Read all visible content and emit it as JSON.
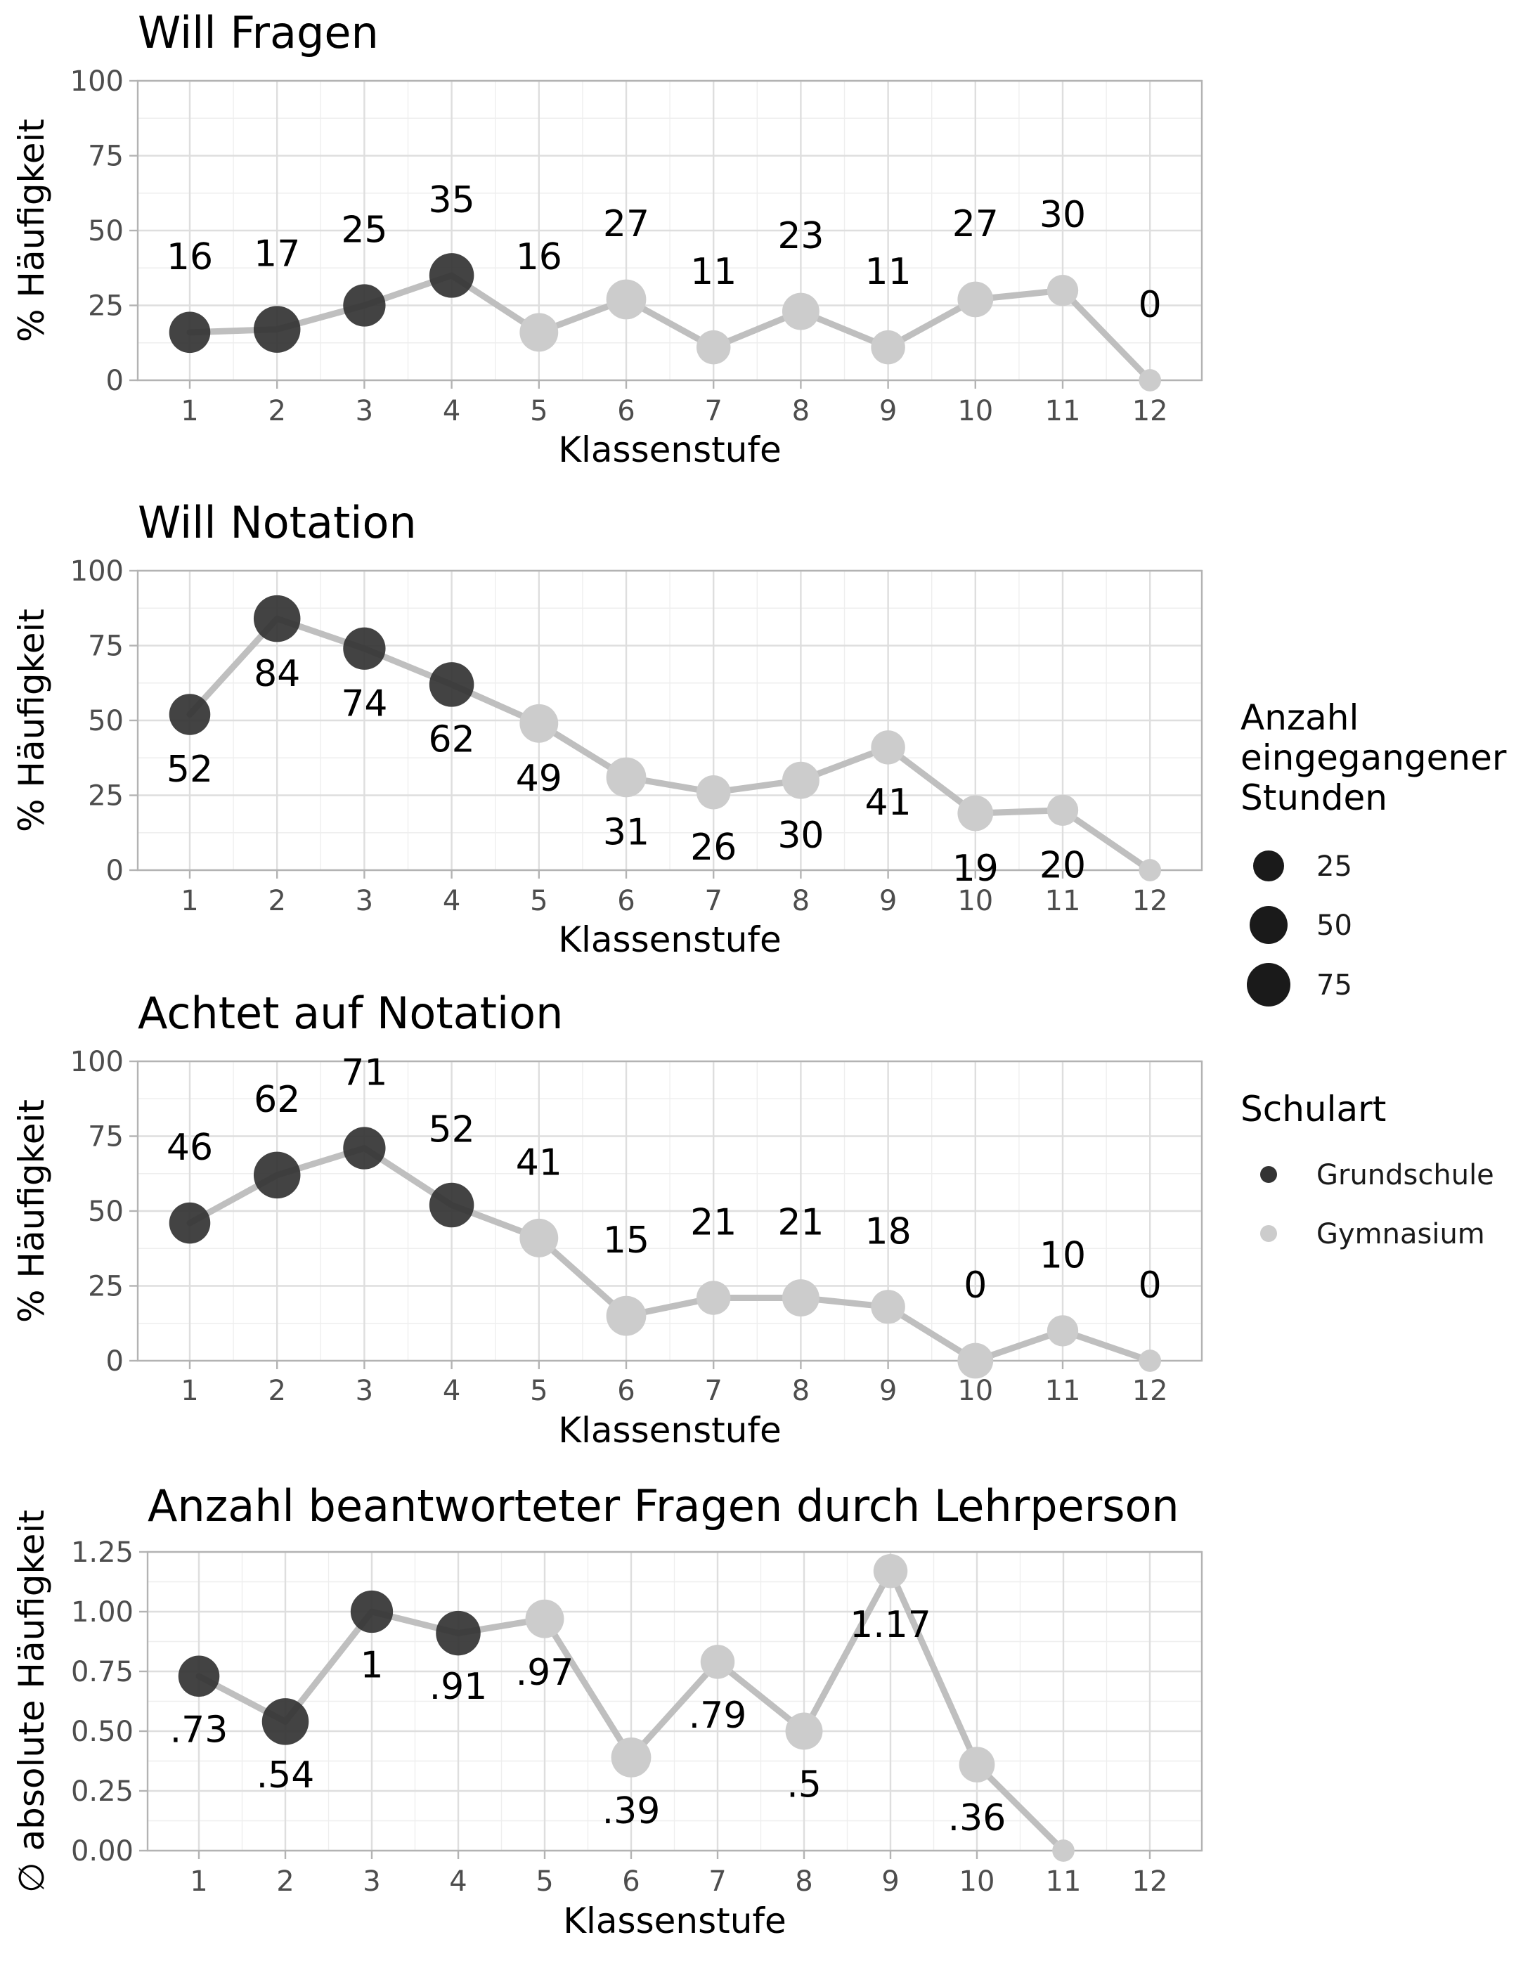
{
  "chart_data": [
    {
      "type": "line",
      "title": "Will Fragen",
      "xlabel": "Klassenstufe",
      "ylabel": "% Häufigkeit",
      "x": [
        1,
        2,
        3,
        4,
        5,
        6,
        7,
        8,
        9,
        10,
        11,
        12
      ],
      "ylim": [
        0,
        100
      ],
      "yticks": [
        "0",
        "25",
        "50",
        "75",
        "100"
      ],
      "ytick_values": [
        0,
        25,
        50,
        75,
        100
      ],
      "values": [
        16,
        17,
        25,
        35,
        16,
        27,
        11,
        23,
        11,
        27,
        30,
        0
      ],
      "labels": [
        "16",
        "17",
        "25",
        "35",
        "16",
        "27",
        "11",
        "23",
        "11",
        "27",
        "30",
        "0"
      ],
      "label_position": "above",
      "sizes": [
        55,
        80,
        60,
        70,
        45,
        50,
        30,
        40,
        30,
        35,
        22,
        5
      ],
      "schulart": [
        "Grundschule",
        "Grundschule",
        "Grundschule",
        "Grundschule",
        "Gymnasium",
        "Gymnasium",
        "Gymnasium",
        "Gymnasium",
        "Gymnasium",
        "Gymnasium",
        "Gymnasium",
        "Gymnasium"
      ],
      "grid": true
    },
    {
      "type": "line",
      "title": "Will Notation",
      "xlabel": "Klassenstufe",
      "ylabel": "% Häufigkeit",
      "x": [
        1,
        2,
        3,
        4,
        5,
        6,
        7,
        8,
        9,
        10,
        11,
        12
      ],
      "ylim": [
        0,
        100
      ],
      "yticks": [
        "0",
        "25",
        "50",
        "75",
        "100"
      ],
      "ytick_values": [
        0,
        25,
        50,
        75,
        100
      ],
      "values": [
        52,
        84,
        74,
        62,
        49,
        31,
        26,
        30,
        41,
        19,
        20,
        0
      ],
      "labels": [
        "52",
        "84",
        "74",
        "62",
        "49",
        "31",
        "26",
        "30",
        "41",
        "19",
        "20",
        ""
      ],
      "label_position": "below",
      "sizes": [
        55,
        80,
        60,
        70,
        45,
        50,
        30,
        40,
        30,
        35,
        22,
        5
      ],
      "schulart": [
        "Grundschule",
        "Grundschule",
        "Grundschule",
        "Grundschule",
        "Gymnasium",
        "Gymnasium",
        "Gymnasium",
        "Gymnasium",
        "Gymnasium",
        "Gymnasium",
        "Gymnasium",
        "Gymnasium"
      ],
      "grid": true
    },
    {
      "type": "line",
      "title": "Achtet auf Notation",
      "xlabel": "Klassenstufe",
      "ylabel": "% Häufigkeit",
      "x": [
        1,
        2,
        3,
        4,
        5,
        6,
        7,
        8,
        9,
        10,
        11,
        12
      ],
      "ylim": [
        0,
        100
      ],
      "yticks": [
        "0",
        "25",
        "50",
        "75",
        "100"
      ],
      "ytick_values": [
        0,
        25,
        50,
        75,
        100
      ],
      "values": [
        46,
        62,
        71,
        52,
        41,
        15,
        21,
        21,
        18,
        0,
        10,
        0
      ],
      "labels": [
        "46",
        "62",
        "71",
        "52",
        "41",
        "15",
        "21",
        "21",
        "18",
        "0",
        "10",
        "0"
      ],
      "label_position": "above",
      "sizes": [
        55,
        80,
        60,
        70,
        45,
        50,
        30,
        40,
        30,
        35,
        22,
        5
      ],
      "schulart": [
        "Grundschule",
        "Grundschule",
        "Grundschule",
        "Grundschule",
        "Gymnasium",
        "Gymnasium",
        "Gymnasium",
        "Gymnasium",
        "Gymnasium",
        "Gymnasium",
        "Gymnasium",
        "Gymnasium"
      ],
      "grid": true
    },
    {
      "type": "line",
      "title": "Anzahl beantworteter Fragen durch Lehrperson",
      "xlabel": "Klassenstufe",
      "ylabel": "∅ absolute Häufigkeit",
      "x": [
        1,
        2,
        3,
        4,
        5,
        6,
        7,
        8,
        9,
        10,
        11,
        12
      ],
      "ylim": [
        0,
        1.25
      ],
      "yticks": [
        "0.00",
        "0.25",
        "0.50",
        "0.75",
        "1.00",
        "1.25"
      ],
      "ytick_values": [
        0,
        0.25,
        0.5,
        0.75,
        1.0,
        1.25
      ],
      "values": [
        0.73,
        0.54,
        1.0,
        0.91,
        0.97,
        0.39,
        0.79,
        0.5,
        1.17,
        0.36,
        0,
        null
      ],
      "labels": [
        ".73",
        ".54",
        "1",
        ".91",
        ".97",
        ".39",
        ".79",
        ".5",
        "1.17",
        ".36",
        "",
        ""
      ],
      "label_position": "below",
      "sizes": [
        55,
        80,
        60,
        70,
        45,
        50,
        30,
        40,
        30,
        35,
        5,
        0
      ],
      "schulart": [
        "Grundschule",
        "Grundschule",
        "Grundschule",
        "Grundschule",
        "Gymnasium",
        "Gymnasium",
        "Gymnasium",
        "Gymnasium",
        "Gymnasium",
        "Gymnasium",
        "Gymnasium",
        "Gymnasium"
      ],
      "grid": true
    }
  ],
  "legend": {
    "size_title_lines": [
      "Anzahl",
      "eingegangener",
      "Stunden"
    ],
    "size_entries": [
      {
        "label": "25",
        "value": 25
      },
      {
        "label": "50",
        "value": 50
      },
      {
        "label": "75",
        "value": 75
      }
    ],
    "color_title": "Schulart",
    "color_entries": [
      {
        "label": "Grundschule",
        "color": "#333333"
      },
      {
        "label": "Gymnasium",
        "color": "#cccccc"
      }
    ],
    "position": "right"
  },
  "colors": {
    "Grundschule": "#333333",
    "Gymnasium": "#cccccc",
    "line": "#bfbfbf",
    "legend_size_key": "#1a1a1a"
  }
}
